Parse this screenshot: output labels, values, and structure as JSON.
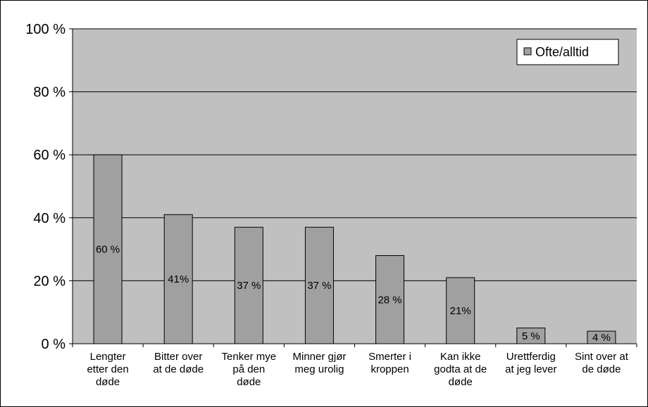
{
  "chart_data": {
    "type": "bar",
    "title": "",
    "xlabel": "",
    "ylabel": "",
    "ylim": [
      0,
      100
    ],
    "yticks": [
      "0 %",
      "20 %",
      "40 %",
      "60 %",
      "80 %",
      "100 %"
    ],
    "ytick_values": [
      0,
      20,
      40,
      60,
      80,
      100
    ],
    "categories": [
      [
        "Lengter",
        "etter den",
        "døde"
      ],
      [
        "Bitter over",
        "at de døde"
      ],
      [
        "Tenker mye",
        "på den",
        "døde"
      ],
      [
        "Minner gjør",
        "meg urolig"
      ],
      [
        "Smerter i",
        "kroppen"
      ],
      [
        "Kan ikke",
        "godta at de",
        "døde"
      ],
      [
        "Urettferdig",
        "at jeg lever"
      ],
      [
        "Sint over at",
        "de døde"
      ]
    ],
    "series": [
      {
        "name": "Ofte/alltid",
        "values": [
          60,
          41,
          37,
          37,
          28,
          21,
          5,
          4
        ],
        "labels": [
          "60 %",
          "41%",
          "37 %",
          "37 %",
          "28 %",
          "21%",
          "5 %",
          "4 %"
        ]
      }
    ],
    "grid": true,
    "legend_position": "top-right",
    "colors": {
      "plot_background": "#c0c0c0",
      "bar_fill": "#a0a0a0",
      "bar_stroke": "#000000",
      "gridline": "#000000"
    }
  }
}
